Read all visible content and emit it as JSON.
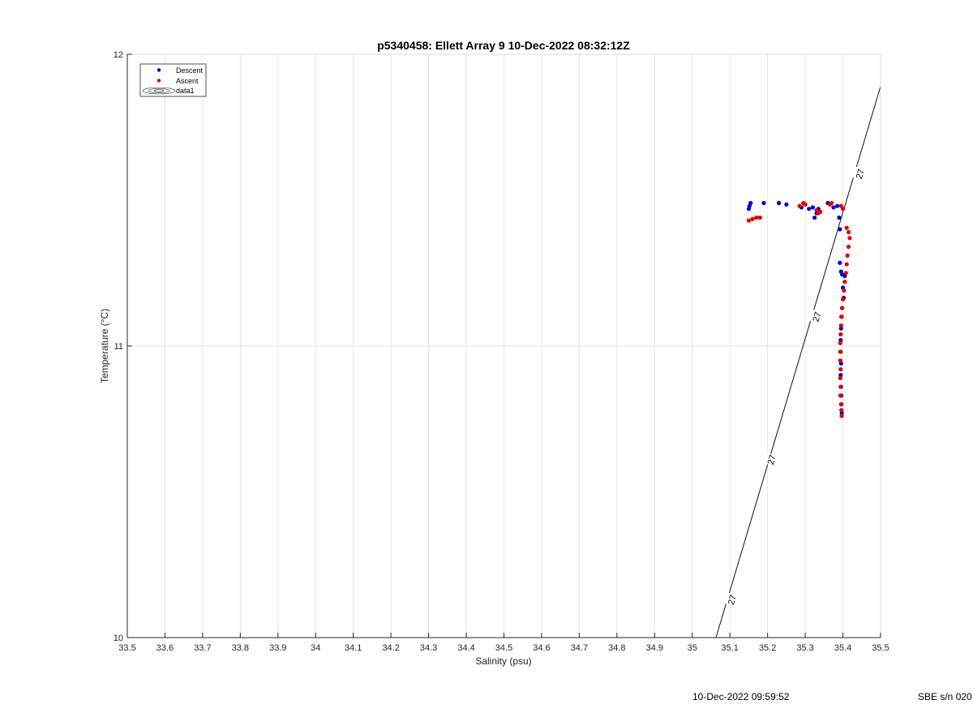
{
  "chart_data": {
    "type": "scatter",
    "title": "p5340458: Ellett Array 9 10-Dec-2022 08:32:12Z",
    "xlabel": "Salinity (psu)",
    "ylabel": "Temperature (°C)",
    "xlim": [
      33.5,
      35.5
    ],
    "ylim": [
      10,
      12
    ],
    "xticks": [
      "33.5",
      "33.6",
      "33.7",
      "33.8",
      "33.9",
      "34",
      "34.1",
      "34.2",
      "34.3",
      "34.4",
      "34.5",
      "34.6",
      "34.7",
      "34.8",
      "34.9",
      "35",
      "35.1",
      "35.2",
      "35.3",
      "35.4",
      "35.5"
    ],
    "yticks": [
      "10",
      "11",
      "12"
    ],
    "grid": true,
    "legend_position": "top-left",
    "legend": [
      "Descent",
      "Ascent",
      "data1"
    ],
    "series": [
      {
        "name": "Descent",
        "color": "#0000cc",
        "points": [
          [
            35.15,
            11.47
          ],
          [
            35.152,
            11.48
          ],
          [
            35.155,
            11.49
          ],
          [
            35.19,
            11.49
          ],
          [
            35.23,
            11.49
          ],
          [
            35.25,
            11.485
          ],
          [
            35.29,
            11.475
          ],
          [
            35.31,
            11.47
          ],
          [
            35.32,
            11.475
          ],
          [
            35.325,
            11.44
          ],
          [
            35.33,
            11.455
          ],
          [
            35.335,
            11.47
          ],
          [
            35.36,
            11.49
          ],
          [
            35.375,
            11.475
          ],
          [
            35.385,
            11.48
          ],
          [
            35.39,
            11.44
          ],
          [
            35.392,
            11.4
          ],
          [
            35.392,
            11.285
          ],
          [
            35.395,
            11.255
          ],
          [
            35.398,
            11.245
          ],
          [
            35.405,
            11.24
          ],
          [
            35.4,
            11.2
          ],
          [
            35.402,
            11.165
          ],
          [
            35.398,
            11.13
          ],
          [
            35.396,
            11.1
          ],
          [
            35.395,
            11.06
          ],
          [
            35.394,
            11.02
          ],
          [
            35.394,
            10.98
          ],
          [
            35.395,
            10.94
          ],
          [
            35.394,
            10.9
          ],
          [
            35.395,
            10.86
          ],
          [
            35.396,
            10.83
          ],
          [
            35.396,
            10.8
          ],
          [
            35.397,
            10.77
          ]
        ]
      },
      {
        "name": "Ascent",
        "color": "#dd0000",
        "points": [
          [
            35.15,
            11.43
          ],
          [
            35.16,
            11.435
          ],
          [
            35.17,
            11.44
          ],
          [
            35.18,
            11.44
          ],
          [
            35.285,
            11.48
          ],
          [
            35.295,
            11.49
          ],
          [
            35.3,
            11.485
          ],
          [
            35.33,
            11.465
          ],
          [
            35.335,
            11.455
          ],
          [
            35.34,
            11.46
          ],
          [
            35.365,
            11.485
          ],
          [
            35.37,
            11.49
          ],
          [
            35.395,
            11.48
          ],
          [
            35.4,
            11.47
          ],
          [
            35.41,
            11.405
          ],
          [
            35.415,
            11.39
          ],
          [
            35.418,
            11.37
          ],
          [
            35.415,
            11.34
          ],
          [
            35.412,
            11.31
          ],
          [
            35.41,
            11.28
          ],
          [
            35.408,
            11.25
          ],
          [
            35.405,
            11.22
          ],
          [
            35.403,
            11.19
          ],
          [
            35.4,
            11.16
          ],
          [
            35.398,
            11.13
          ],
          [
            35.397,
            11.1
          ],
          [
            35.395,
            11.07
          ],
          [
            35.394,
            11.04
          ],
          [
            35.393,
            11.01
          ],
          [
            35.393,
            10.98
          ],
          [
            35.393,
            10.95
          ],
          [
            35.394,
            10.92
          ],
          [
            35.393,
            10.89
          ],
          [
            35.394,
            10.86
          ],
          [
            35.393,
            10.83
          ],
          [
            35.395,
            10.8
          ],
          [
            35.396,
            10.78
          ],
          [
            35.397,
            10.76
          ]
        ]
      }
    ],
    "isopycnal": {
      "name": "data1",
      "label": "27",
      "value": 27,
      "points": [
        [
          35.063,
          10.0
        ],
        [
          35.5,
          11.89
        ]
      ],
      "label_points": [
        [
          35.105,
          10.13
        ],
        [
          35.21,
          10.61
        ],
        [
          35.33,
          11.1
        ],
        [
          35.445,
          11.59
        ]
      ]
    }
  },
  "footer": {
    "datetime": "10-Dec-2022 09:59:52",
    "serial": "SBE s/n 020"
  }
}
